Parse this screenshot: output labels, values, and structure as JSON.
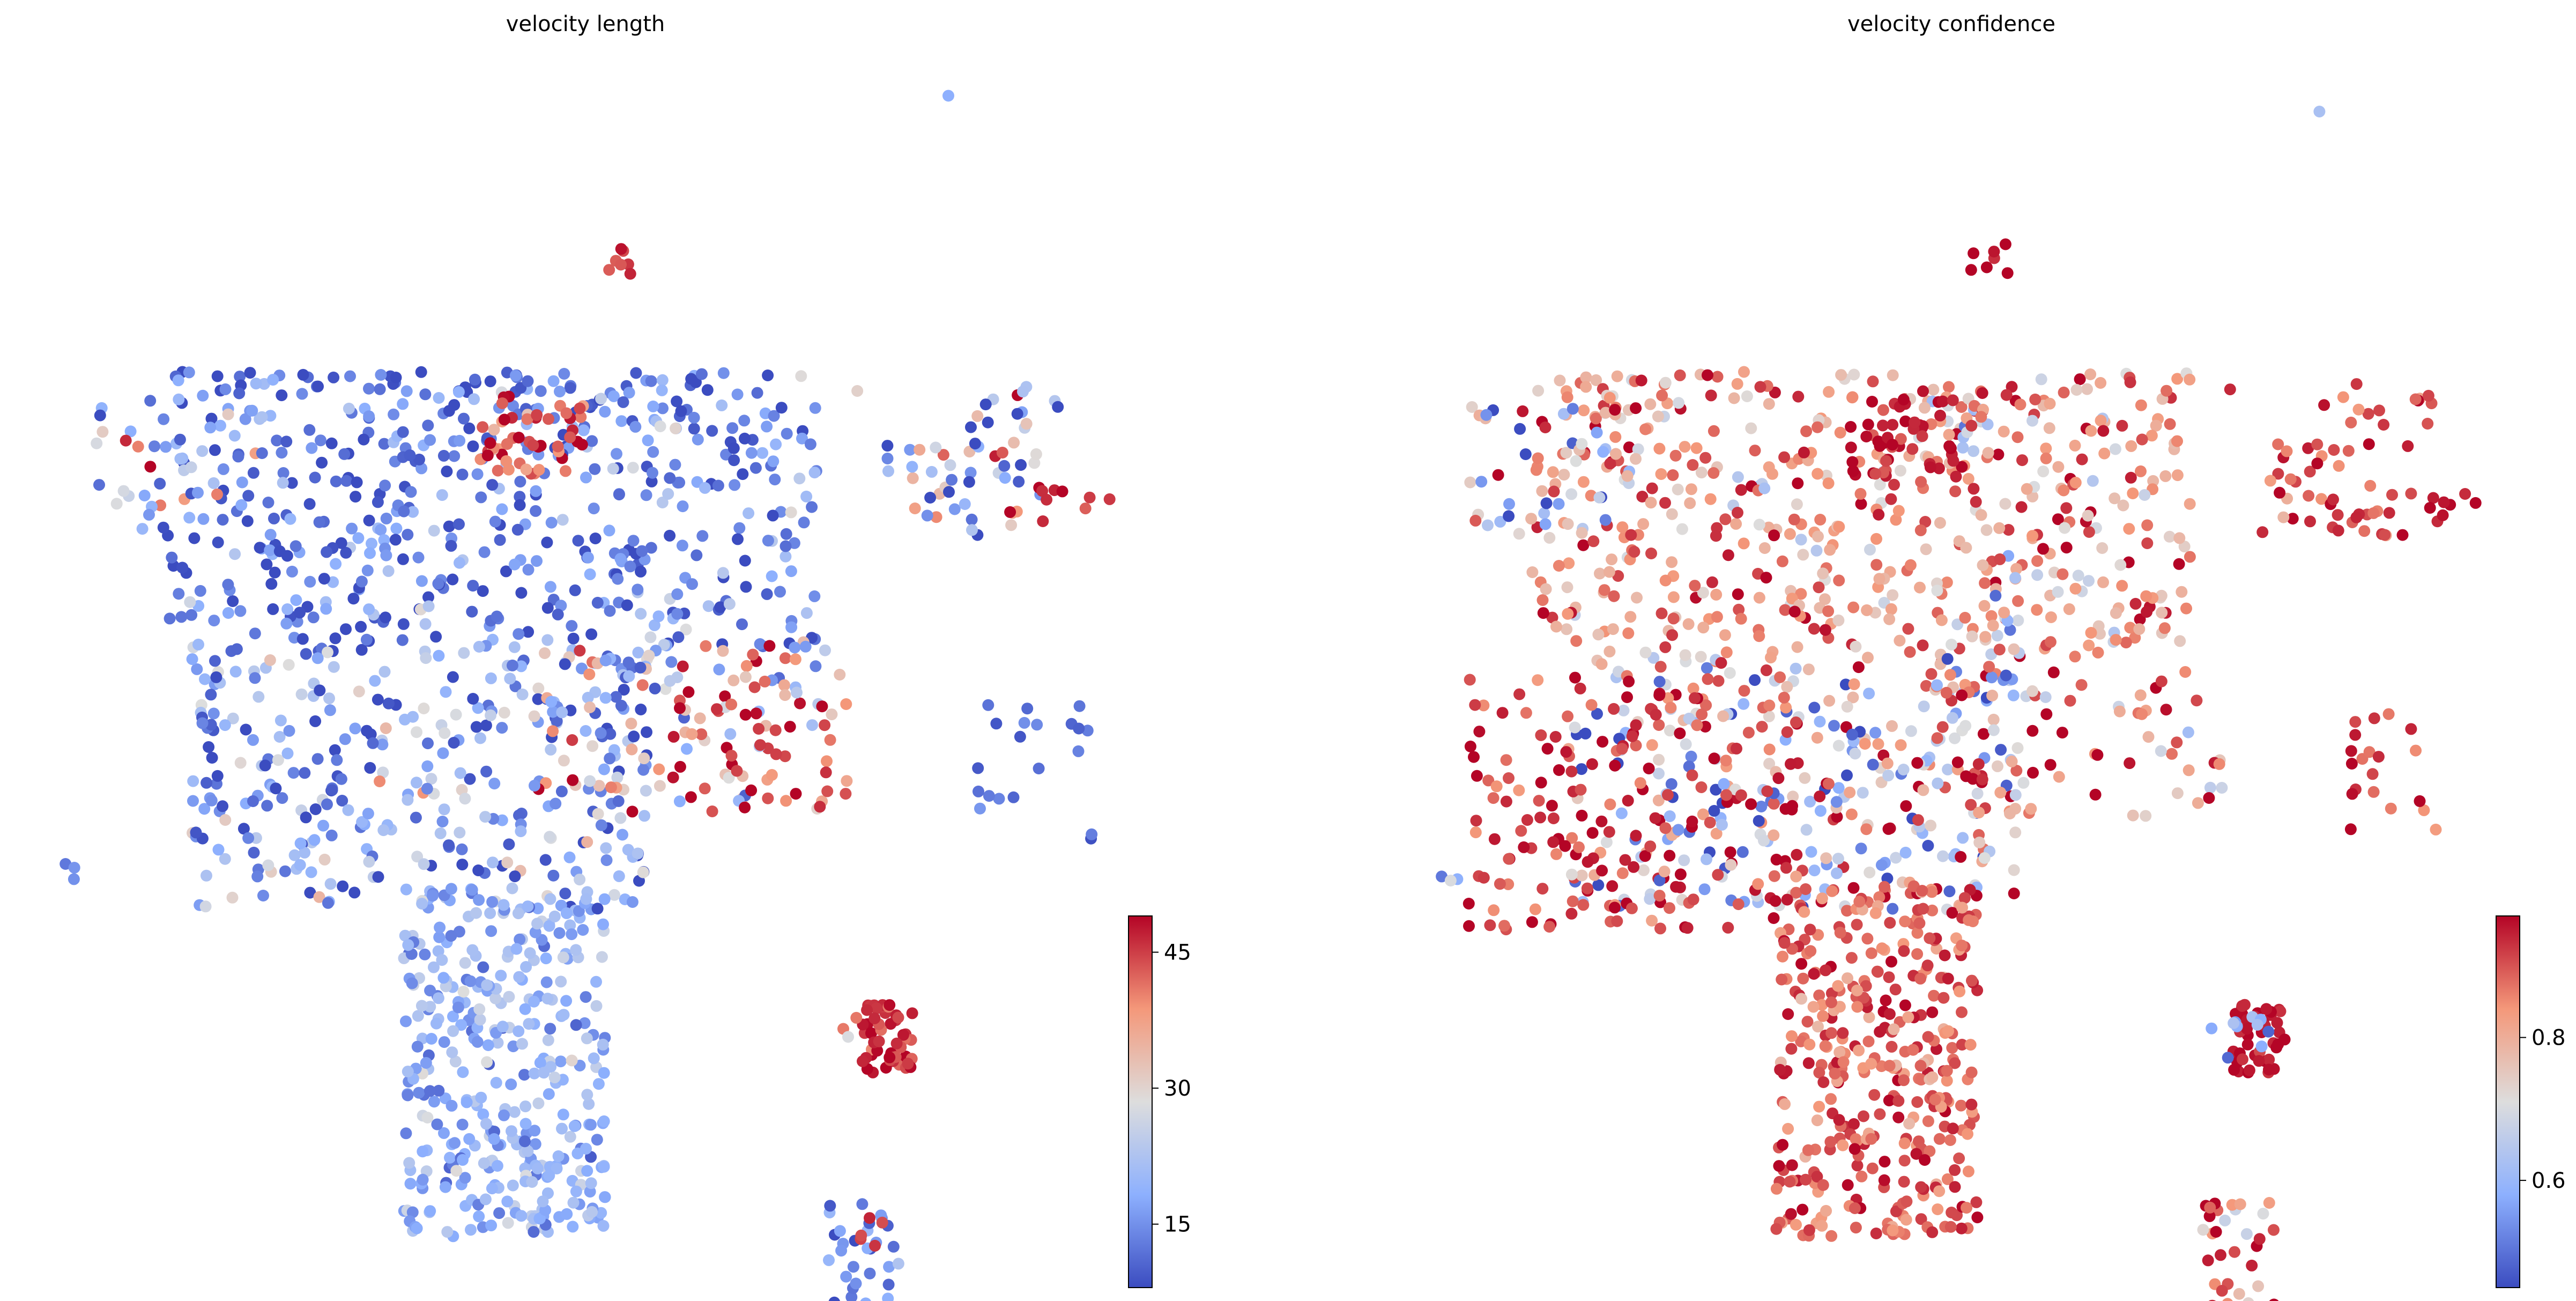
{
  "chart_data": [
    {
      "type": "scatter",
      "title": "velocity length",
      "xlabel": "",
      "ylabel": "",
      "colormap": "coolwarm",
      "colorbar": {
        "range": [
          8,
          49
        ],
        "ticks": [
          15,
          30,
          45
        ]
      },
      "clusters": [
        {
          "x": [
            0.1,
            0.72
          ],
          "y": [
            0.52,
            0.76
          ],
          "value": 13,
          "spread": 6,
          "count": 520
        },
        {
          "x": [
            0.13,
            0.56
          ],
          "y": [
            0.3,
            0.52
          ],
          "value": 17,
          "spread": 8,
          "count": 330
        },
        {
          "x": [
            0.45,
            0.75
          ],
          "y": [
            0.38,
            0.53
          ],
          "value": 34,
          "spread": 12,
          "count": 110
        },
        {
          "x": [
            0.58,
            0.75
          ],
          "y": [
            0.38,
            0.48
          ],
          "value": 46,
          "spread": 3,
          "count": 30
        },
        {
          "x": [
            0.04,
            0.2
          ],
          "y": [
            0.62,
            0.74
          ],
          "value": 22,
          "spread": 12,
          "count": 40
        },
        {
          "x": [
            0.01,
            0.03
          ],
          "y": [
            0.32,
            0.34
          ],
          "value": 14,
          "spread": 2,
          "count": 3
        },
        {
          "x": [
            0.43,
            0.5
          ],
          "y": [
            0.74,
            0.76
          ],
          "value": 14,
          "spread": 2,
          "count": 6
        },
        {
          "x": [
            0.4,
            0.5
          ],
          "y": [
            0.67,
            0.74
          ],
          "value": 44,
          "spread": 6,
          "count": 50
        },
        {
          "x": [
            0.5,
            0.6
          ],
          "y": [
            0.71,
            0.75
          ],
          "value": 24,
          "spread": 8,
          "count": 10
        },
        {
          "x": [
            0.51,
            0.55
          ],
          "y": [
            0.84,
            0.87
          ],
          "value": 45,
          "spread": 2,
          "count": 7
        },
        {
          "x": [
            0.53,
            0.56
          ],
          "y": [
            0.56,
            0.61
          ],
          "value": 13,
          "spread": 3,
          "count": 12
        },
        {
          "x": [
            0.52,
            0.56
          ],
          "y": [
            0.49,
            0.52
          ],
          "value": 15,
          "spread": 3,
          "count": 8
        },
        {
          "x": [
            0.78,
            0.93
          ],
          "y": [
            0.62,
            0.7
          ],
          "value": 24,
          "spread": 14,
          "count": 45
        },
        {
          "x": [
            0.93,
            1.0
          ],
          "y": [
            0.63,
            0.66
          ],
          "value": 46,
          "spread": 2,
          "count": 8
        },
        {
          "x": [
            0.84,
            0.95
          ],
          "y": [
            0.71,
            0.75
          ],
          "value": 30,
          "spread": 16,
          "count": 14
        },
        {
          "x": [
            0.87,
            0.98
          ],
          "y": [
            0.36,
            0.48
          ],
          "value": 12,
          "spread": 2,
          "count": 20
        },
        {
          "x": [
            0.76,
            0.81
          ],
          "y": [
            0.16,
            0.22
          ],
          "value": 46,
          "spread": 3,
          "count": 50
        },
        {
          "x": [
            0.74,
            0.76
          ],
          "y": [
            0.19,
            0.21
          ],
          "value": 30,
          "spread": 10,
          "count": 3
        },
        {
          "x": [
            0.33,
            0.52
          ],
          "y": [
            0.02,
            0.32
          ],
          "value": 19,
          "spread": 4,
          "count": 380
        },
        {
          "x": [
            0.73,
            0.8
          ],
          "y": [
            -0.08,
            0.05
          ],
          "value": 14,
          "spread": 4,
          "count": 45
        },
        {
          "x": [
            0.76,
            0.79
          ],
          "y": [
            0.01,
            0.04
          ],
          "value": 45,
          "spread": 2,
          "count": 5
        },
        {
          "x": [
            0.84,
            0.85
          ],
          "y": [
            0.98,
            1.0
          ],
          "value": 18,
          "spread": 1,
          "count": 1
        },
        {
          "x": [
            0.75,
            0.76
          ],
          "y": [
            0.74,
            0.75
          ],
          "value": 29,
          "spread": 1,
          "count": 1
        }
      ]
    },
    {
      "type": "scatter",
      "title": "velocity confidence",
      "xlabel": "",
      "ylabel": "",
      "colormap": "coolwarm",
      "colorbar": {
        "range": [
          0.45,
          0.97
        ],
        "ticks": [
          0.6,
          0.8
        ],
        "tick_labels": [
          "0.6",
          "0.8"
        ]
      },
      "clusters": [
        {
          "x": [
            0.1,
            0.72
          ],
          "y": [
            0.52,
            0.76
          ],
          "value": 0.84,
          "spread": 0.09,
          "count": 520
        },
        {
          "x": [
            0.13,
            0.56
          ],
          "y": [
            0.3,
            0.52
          ],
          "value": 0.72,
          "spread": 0.18,
          "count": 330
        },
        {
          "x": [
            0.04,
            0.35
          ],
          "y": [
            0.28,
            0.5
          ],
          "value": 0.92,
          "spread": 0.05,
          "count": 170
        },
        {
          "x": [
            0.04,
            0.2
          ],
          "y": [
            0.62,
            0.74
          ],
          "value": 0.7,
          "spread": 0.18,
          "count": 50
        },
        {
          "x": [
            0.45,
            0.75
          ],
          "y": [
            0.38,
            0.53
          ],
          "value": 0.86,
          "spread": 0.12,
          "count": 80
        },
        {
          "x": [
            0.01,
            0.03
          ],
          "y": [
            0.32,
            0.34
          ],
          "value": 0.62,
          "spread": 0.05,
          "count": 3
        },
        {
          "x": [
            0.4,
            0.5
          ],
          "y": [
            0.67,
            0.74
          ],
          "value": 0.95,
          "spread": 0.03,
          "count": 50
        },
        {
          "x": [
            0.49,
            0.54
          ],
          "y": [
            0.68,
            0.73
          ],
          "value": 0.62,
          "spread": 0.08,
          "count": 10
        },
        {
          "x": [
            0.51,
            0.55
          ],
          "y": [
            0.84,
            0.87
          ],
          "value": 0.96,
          "spread": 0.02,
          "count": 7
        },
        {
          "x": [
            0.5,
            0.6
          ],
          "y": [
            0.71,
            0.75
          ],
          "value": 0.9,
          "spread": 0.05,
          "count": 10
        },
        {
          "x": [
            0.53,
            0.56
          ],
          "y": [
            0.48,
            0.61
          ],
          "value": 0.68,
          "spread": 0.14,
          "count": 20
        },
        {
          "x": [
            0.78,
            0.93
          ],
          "y": [
            0.62,
            0.7
          ],
          "value": 0.9,
          "spread": 0.06,
          "count": 45
        },
        {
          "x": [
            0.93,
            1.0
          ],
          "y": [
            0.63,
            0.66
          ],
          "value": 0.95,
          "spread": 0.03,
          "count": 8
        },
        {
          "x": [
            0.84,
            0.95
          ],
          "y": [
            0.71,
            0.75
          ],
          "value": 0.92,
          "spread": 0.05,
          "count": 14
        },
        {
          "x": [
            0.87,
            0.98
          ],
          "y": [
            0.36,
            0.48
          ],
          "value": 0.9,
          "spread": 0.05,
          "count": 20
        },
        {
          "x": [
            0.76,
            0.81
          ],
          "y": [
            0.16,
            0.22
          ],
          "value": 0.96,
          "spread": 0.02,
          "count": 45
        },
        {
          "x": [
            0.74,
            0.8
          ],
          "y": [
            0.17,
            0.21
          ],
          "value": 0.58,
          "spread": 0.06,
          "count": 10
        },
        {
          "x": [
            0.33,
            0.52
          ],
          "y": [
            0.02,
            0.32
          ],
          "value": 0.89,
          "spread": 0.05,
          "count": 380
        },
        {
          "x": [
            0.73,
            0.8
          ],
          "y": [
            -0.08,
            0.05
          ],
          "value": 0.86,
          "spread": 0.1,
          "count": 45
        },
        {
          "x": [
            0.84,
            0.85
          ],
          "y": [
            0.98,
            1.0
          ],
          "value": 0.62,
          "spread": 0.01,
          "count": 1
        },
        {
          "x": [
            0.75,
            0.76
          ],
          "y": [
            0.74,
            0.75
          ],
          "value": 0.94,
          "spread": 0.01,
          "count": 1
        }
      ]
    }
  ]
}
